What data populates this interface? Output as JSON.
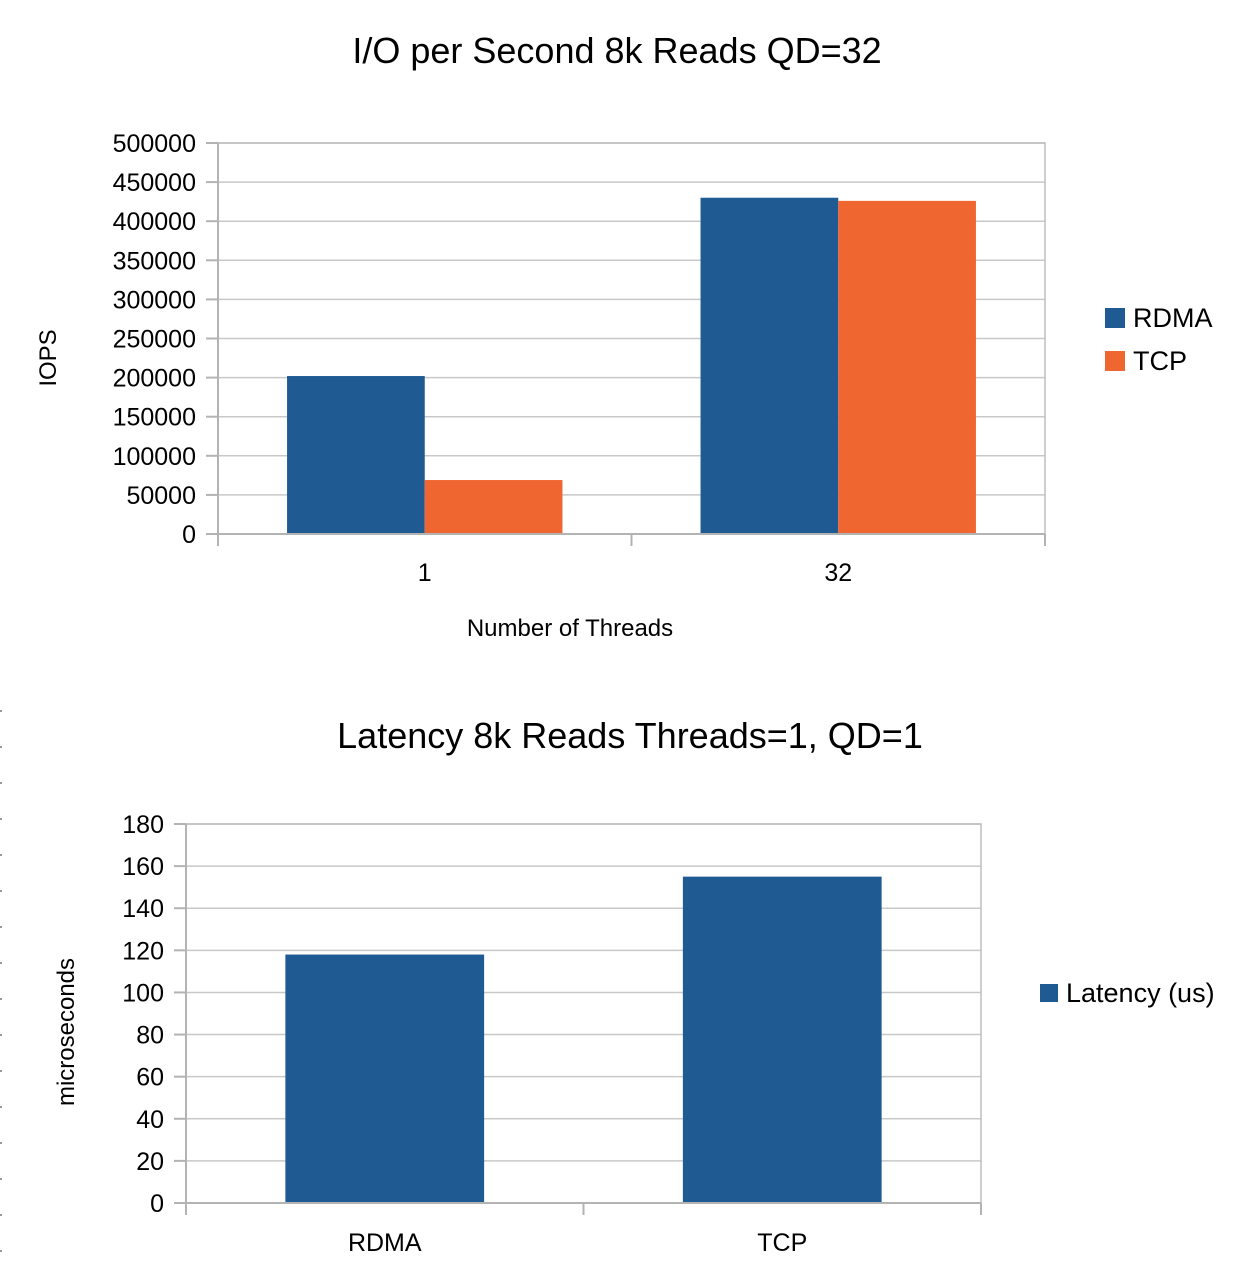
{
  "colors": {
    "rdma": "#1f5a93",
    "tcp": "#f06630"
  },
  "chart_data": [
    {
      "type": "bar",
      "title": "I/O per Second 8k Reads QD=32",
      "xlabel": "Number of Threads",
      "ylabel": "IOPS",
      "categories": [
        "1",
        "32"
      ],
      "series": [
        {
          "name": "RDMA",
          "values": [
            202000,
            430000
          ],
          "color": "#1f5a93"
        },
        {
          "name": "TCP",
          "values": [
            69000,
            426000
          ],
          "color": "#f06630"
        }
      ],
      "ylim": [
        0,
        500000
      ],
      "yticks": [
        0,
        50000,
        100000,
        150000,
        200000,
        250000,
        300000,
        350000,
        400000,
        450000,
        500000
      ],
      "grid": true,
      "legend": "right"
    },
    {
      "type": "bar",
      "title": "Latency 8k Reads Threads=1, QD=1",
      "xlabel": "",
      "ylabel": "microseconds",
      "categories": [
        "RDMA",
        "TCP"
      ],
      "series": [
        {
          "name": "Latency (us)",
          "values": [
            118,
            155
          ],
          "color": "#1f5a93"
        }
      ],
      "ylim": [
        0,
        180
      ],
      "yticks": [
        0,
        20,
        40,
        60,
        80,
        100,
        120,
        140,
        160,
        180
      ],
      "grid": true,
      "legend": "right"
    }
  ]
}
